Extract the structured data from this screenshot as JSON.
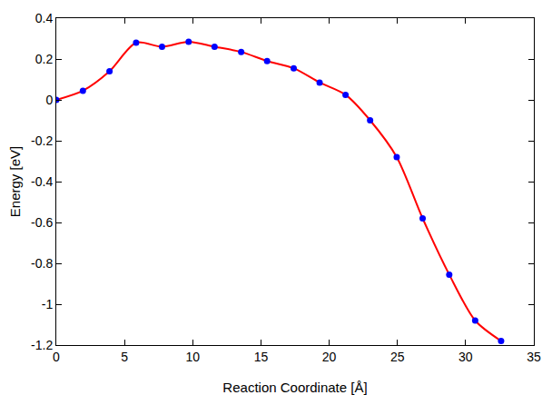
{
  "chart_data": {
    "type": "line",
    "x_label": "Reaction Coordinate [Å]",
    "y_label": "Energy [eV]",
    "x": [
      0,
      1.95,
      3.9,
      5.85,
      7.75,
      9.7,
      11.6,
      13.55,
      15.45,
      17.4,
      19.3,
      21.2,
      23.0,
      24.95,
      26.85,
      28.8,
      30.7,
      32.6
    ],
    "values": [
      0,
      0.045,
      0.14,
      0.28,
      0.26,
      0.285,
      0.26,
      0.235,
      0.19,
      0.155,
      0.085,
      0.025,
      -0.1,
      -0.28,
      -0.58,
      -0.855,
      -1.08,
      -1.18
    ],
    "color": "#ff0000",
    "colors": [
      "#0000ff",
      "#0000ff",
      "#0000ff",
      "#0000ff",
      "#0000ff",
      "#0000ff",
      "#0000ff",
      "#0000ff",
      "#0000ff",
      "#0000ff",
      "#0000ff",
      "#0000ff",
      "#0000ff",
      "#0000ff",
      "#0000ff",
      "#0000ff",
      "#0000ff",
      "#0000ff"
    ],
    "marker": "circle",
    "line_style": "solid",
    "xlim": [
      0,
      35
    ],
    "xticks": [
      0,
      5,
      10,
      15,
      20,
      25,
      30,
      35
    ],
    "ylim": [
      -1.2,
      0.4
    ],
    "yticks": [
      -1.2,
      -1,
      -0.8,
      -0.6,
      -0.4,
      -0.2,
      0,
      0.2,
      0.4
    ],
    "grid": false
  }
}
